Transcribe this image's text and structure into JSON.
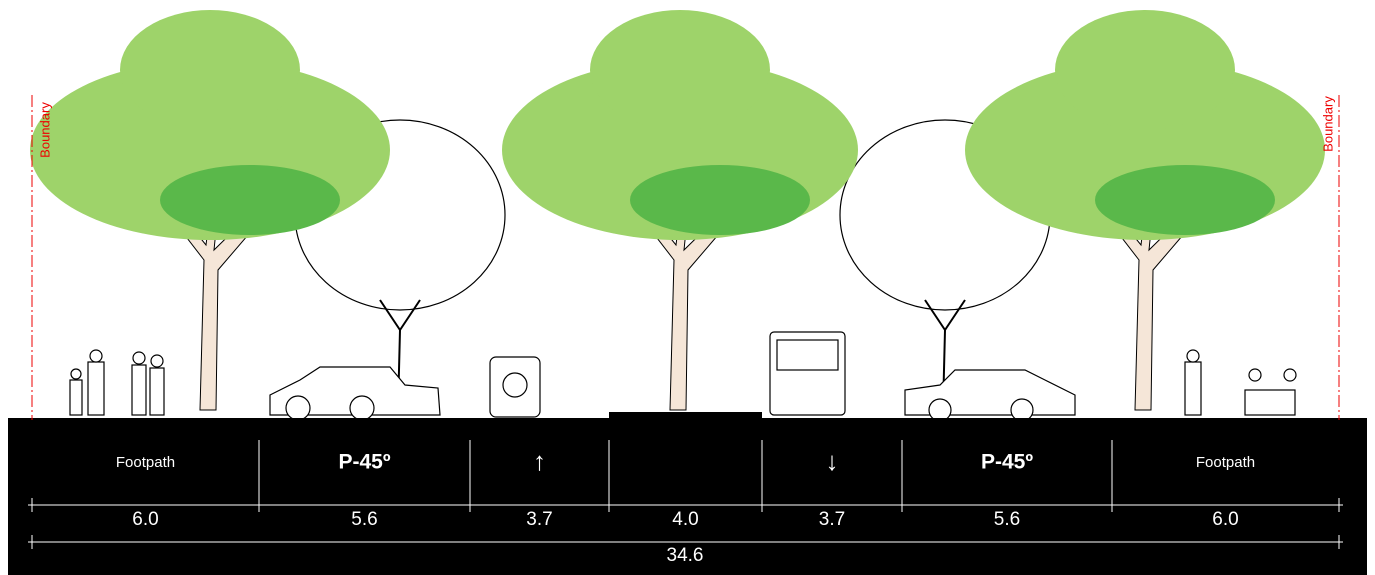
{
  "boundary": {
    "left": "Boundary",
    "right": "Boundary"
  },
  "zones": [
    {
      "label": "Footpath",
      "width": "6.0"
    },
    {
      "label": "P-45º",
      "width": "5.6"
    },
    {
      "label": "↑",
      "width": "3.7"
    },
    {
      "width": "4.0"
    },
    {
      "label": "↓",
      "width": "3.7"
    },
    {
      "label": "P-45º",
      "width": "5.6"
    },
    {
      "label": "Footpath",
      "width": "6.0"
    }
  ],
  "total_width": "34.6"
}
